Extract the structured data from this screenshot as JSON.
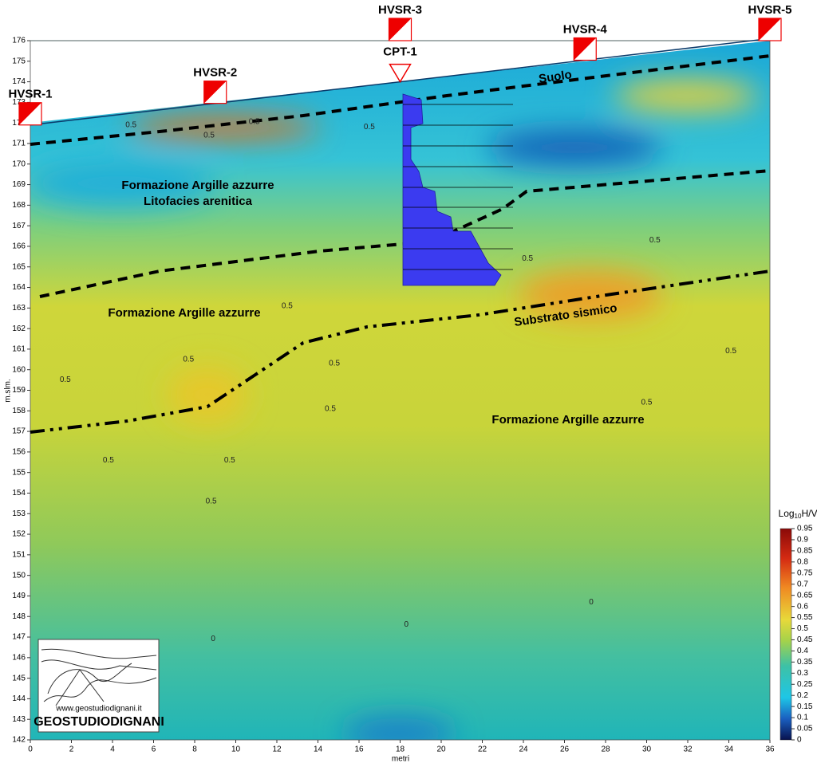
{
  "chart_data": {
    "type": "section",
    "xlabel": "metri",
    "ylabel": "m.slm.",
    "xlim": [
      0,
      36
    ],
    "ylim": [
      142,
      176
    ],
    "xticks": [
      0,
      2,
      4,
      6,
      8,
      10,
      12,
      14,
      16,
      18,
      20,
      22,
      24,
      26,
      28,
      30,
      32,
      34,
      36
    ],
    "yticks": [
      142,
      143,
      144,
      145,
      146,
      147,
      148,
      149,
      150,
      151,
      152,
      153,
      154,
      155,
      156,
      157,
      158,
      159,
      160,
      161,
      162,
      163,
      164,
      165,
      166,
      167,
      168,
      169,
      170,
      171,
      172,
      173,
      174,
      175,
      176
    ],
    "surface": {
      "x": [
        0,
        36
      ],
      "y": [
        171.9,
        176.1
      ]
    },
    "stations": [
      {
        "name": "HVSR-1",
        "x": 0
      },
      {
        "name": "HVSR-2",
        "x": 9
      },
      {
        "name": "HVSR-3",
        "x": 18
      },
      {
        "name": "HVSR-4",
        "x": 27
      },
      {
        "name": "HVSR-5",
        "x": 36
      }
    ],
    "cpt": {
      "name": "CPT-1",
      "x": 18
    },
    "colorbar": {
      "label_base": "Log",
      "label_sub": "10",
      "label_rest": "H/V",
      "lim": [
        0,
        0.95
      ],
      "ticks": [
        0,
        0.05,
        0.1,
        0.15,
        0.2,
        0.25,
        0.3,
        0.35,
        0.4,
        0.45,
        0.5,
        0.55,
        0.6,
        0.65,
        0.7,
        0.75,
        0.8,
        0.85,
        0.9,
        0.95
      ]
    },
    "annotations": [
      "Suolo",
      "Formazione Argille azzurre",
      "Litofacies arenitica",
      "Formazione Argille azzurre",
      "Substrato sismico",
      "Formazione Argille azzurre"
    ],
    "contour_labels": [
      {
        "value": 0.5,
        "x": 4.9,
        "y": 171.9
      },
      {
        "value": 0.5,
        "x": 10.9,
        "y": 172.05
      },
      {
        "value": 0.5,
        "x": 16.5,
        "y": 171.8
      },
      {
        "value": 0.5,
        "x": 8.7,
        "y": 171.4
      },
      {
        "value": 0.5,
        "x": 30.4,
        "y": 166.3
      },
      {
        "value": 0.5,
        "x": 24.2,
        "y": 165.4
      },
      {
        "value": 0.5,
        "x": 12.5,
        "y": 163.1
      },
      {
        "value": 0.5,
        "x": 7.7,
        "y": 160.5
      },
      {
        "value": 0.5,
        "x": 1.7,
        "y": 159.5
      },
      {
        "value": 0.5,
        "x": 14.8,
        "y": 160.3
      },
      {
        "value": 0.5,
        "x": 34.1,
        "y": 160.9
      },
      {
        "value": 0.5,
        "x": 30.0,
        "y": 158.4
      },
      {
        "value": 0.5,
        "x": 14.6,
        "y": 158.1
      },
      {
        "value": 0.5,
        "x": 3.8,
        "y": 155.6
      },
      {
        "value": 0.5,
        "x": 9.7,
        "y": 155.6
      },
      {
        "value": 0.5,
        "x": 8.8,
        "y": 153.6
      },
      {
        "value": 0,
        "x": 27.3,
        "y": 148.7
      },
      {
        "value": 0,
        "x": 18.3,
        "y": 147.6
      },
      {
        "value": 0,
        "x": 8.9,
        "y": 146.9
      }
    ]
  },
  "logo": {
    "url": "www.geostudiodignani.it",
    "name": "GEOSTUDIODIGNANI"
  }
}
